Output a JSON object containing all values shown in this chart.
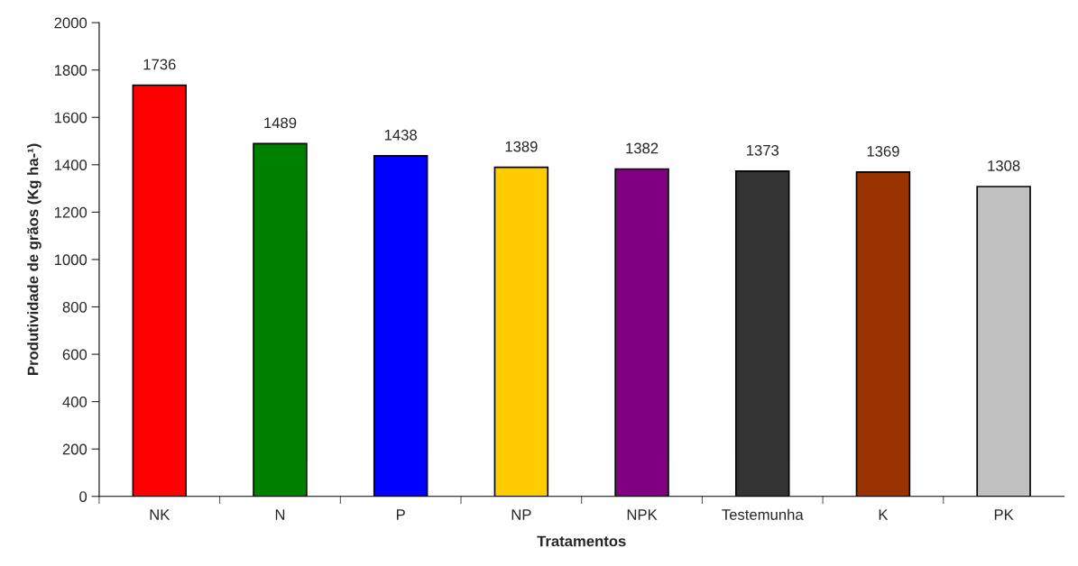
{
  "chart_data": {
    "type": "bar",
    "categories": [
      "NK",
      "N",
      "P",
      "NP",
      "NPK",
      "Testemunha",
      "K",
      "PK"
    ],
    "values": [
      1736,
      1489,
      1438,
      1389,
      1382,
      1373,
      1369,
      1308
    ],
    "colors": [
      "#ff0000",
      "#008000",
      "#0000ff",
      "#ffcc00",
      "#800080",
      "#333333",
      "#993300",
      "#c0c0c0"
    ],
    "xlabel": "Tratamentos",
    "ylabel": "Produtividade de grãos (Kg ha-¹)",
    "ylim": [
      0,
      2000
    ],
    "yticks": [
      0,
      200,
      400,
      600,
      800,
      1000,
      1200,
      1400,
      1600,
      1800,
      2000
    ],
    "data_labels": true,
    "grid": false,
    "legend": false
  }
}
